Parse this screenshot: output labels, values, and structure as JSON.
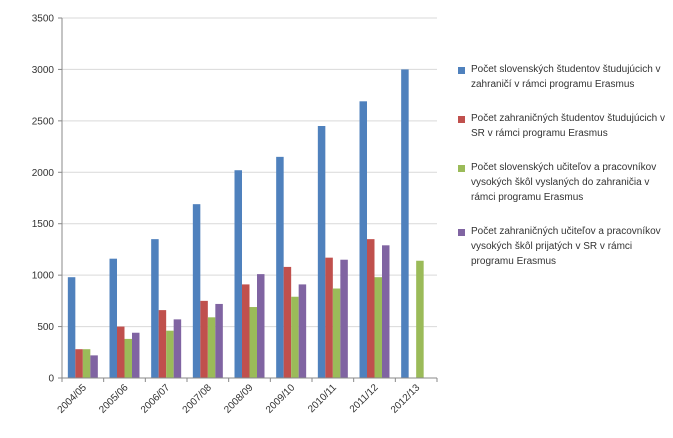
{
  "chart_data": {
    "type": "bar",
    "categories": [
      "2004/05",
      "2005/06",
      "2006/07",
      "2007/08",
      "2008/09",
      "2009/10",
      "2010/11",
      "2011/12",
      "2012/13"
    ],
    "series": [
      {
        "name": "Počet slovenských študentov študujúcich v zahraničí v rámci programu Erasmus",
        "color": "#4f81bd",
        "values": [
          980,
          1160,
          1350,
          1690,
          2020,
          2150,
          2450,
          2690,
          3000
        ]
      },
      {
        "name": "Počet zahraničných študentov študujúcich v SR v rámci programu Erasmus",
        "color": "#c0504d",
        "values": [
          280,
          500,
          660,
          750,
          910,
          1080,
          1170,
          1350,
          null
        ]
      },
      {
        "name": "Počet slovenských učiteľov a pracovníkov vysokých škôl vyslaných do zahraničia v rámci programu Erasmus",
        "color": "#9bbb59",
        "values": [
          280,
          380,
          460,
          590,
          690,
          790,
          870,
          980,
          1140
        ]
      },
      {
        "name": "Počet zahraničných učiteľov a pracovníkov vysokých škôl prijatých v SR v rámci programu Erasmus",
        "color": "#8064a2",
        "values": [
          220,
          440,
          570,
          720,
          1010,
          910,
          1150,
          1290,
          null
        ]
      }
    ],
    "ylim": [
      0,
      3500
    ],
    "yticks": [
      0,
      500,
      1000,
      1500,
      2000,
      2500,
      3000,
      3500
    ],
    "grid": true,
    "legend": "right"
  }
}
